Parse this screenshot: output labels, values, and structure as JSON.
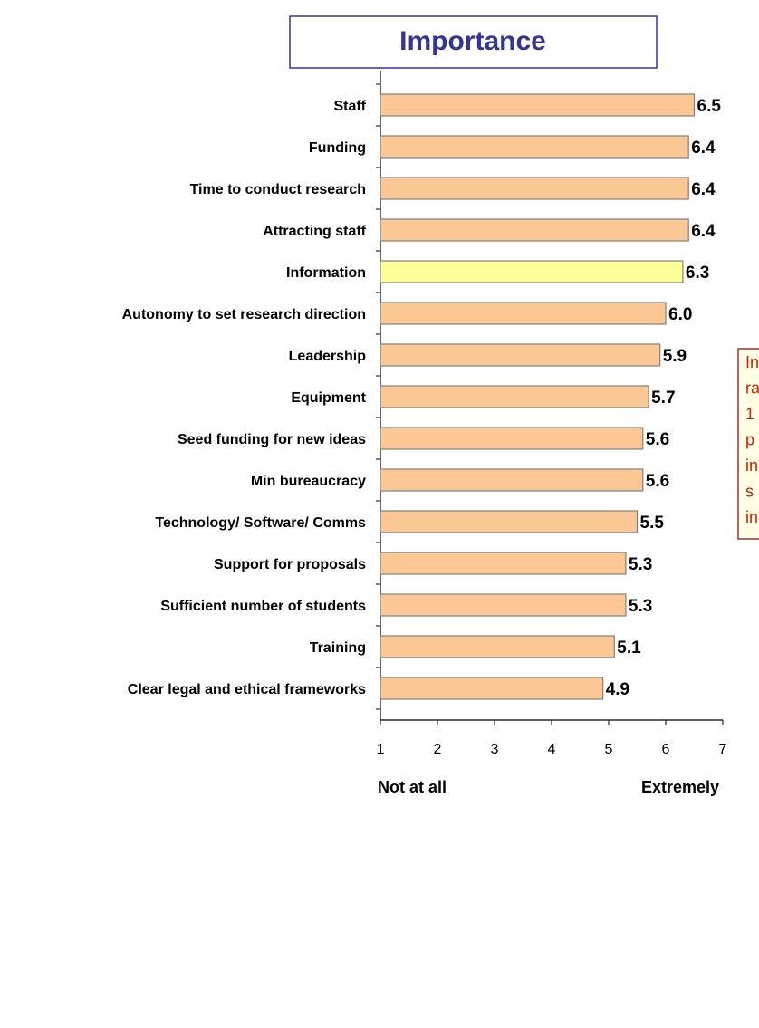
{
  "chart_data": {
    "type": "barh",
    "title": "Importance",
    "categories": [
      "Staff",
      "Funding",
      "Time  to conduct research",
      "Attracting staff",
      "Information",
      "Autonomy to set research direction",
      "Leadership",
      "Equipment",
      "Seed funding for new ideas",
      "Min bureaucracy",
      "Technology/ Software/ Comms",
      "Support for proposals",
      "Sufficient number of students",
      "Training",
      "Clear legal and ethical frameworks"
    ],
    "values": [
      6.5,
      6.4,
      6.4,
      6.4,
      6.3,
      6.0,
      5.9,
      5.7,
      5.6,
      5.6,
      5.5,
      5.3,
      5.3,
      5.1,
      4.9
    ],
    "value_labels": [
      "6.5",
      "6.4",
      "6.4",
      "6.4",
      "6.3",
      "6.0",
      "5.9",
      "5.7",
      "5.6",
      "5.6",
      "5.5",
      "5.3",
      "5.3",
      "5.1",
      "4.9"
    ],
    "colors": [
      "#fbc895",
      "#fbc895",
      "#fbc895",
      "#fbc895",
      "#ffff99",
      "#fbc895",
      "#fbc895",
      "#fbc895",
      "#fbc895",
      "#fbc895",
      "#fbc895",
      "#fbc895",
      "#fbc895",
      "#fbc895",
      "#fbc895"
    ],
    "xlim": [
      1,
      7
    ],
    "xticks": [
      1,
      2,
      3,
      4,
      5,
      6,
      7
    ],
    "x_label_left": "Not at all",
    "x_label_right": "Extremely",
    "annotation": [
      "In",
      "ra",
      "1",
      "p",
      "in",
      "s",
      "in"
    ]
  }
}
